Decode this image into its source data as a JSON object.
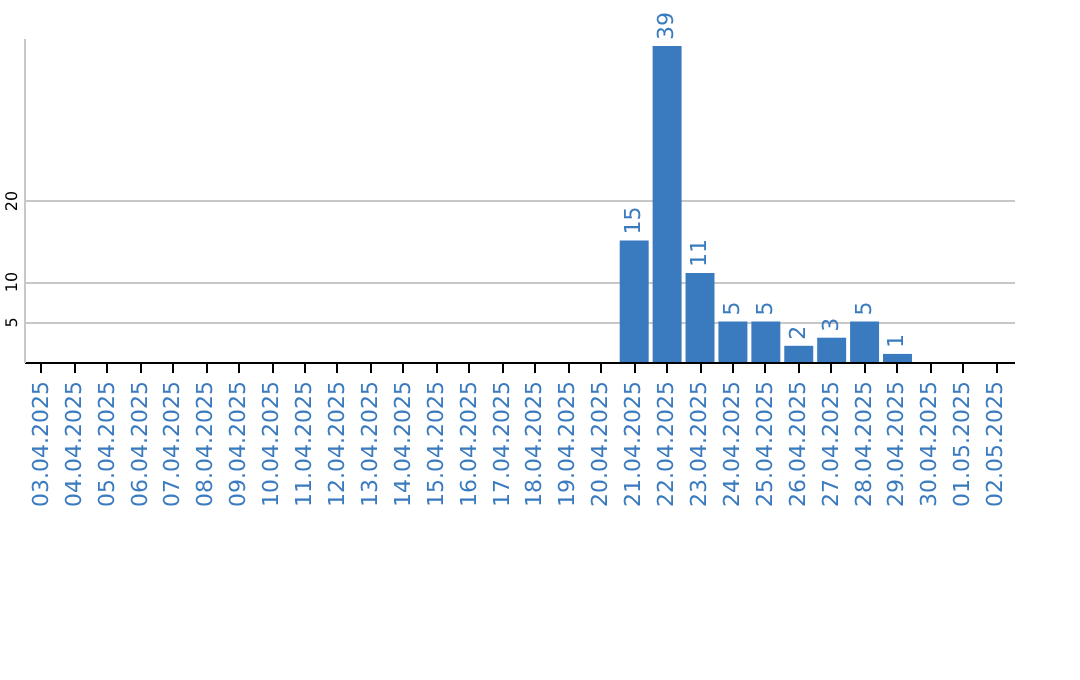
{
  "chart_data": {
    "type": "bar",
    "categories": [
      "03.04.2025",
      "04.04.2025",
      "05.04.2025",
      "06.04.2025",
      "07.04.2025",
      "08.04.2025",
      "09.04.2025",
      "10.04.2025",
      "11.04.2025",
      "12.04.2025",
      "13.04.2025",
      "14.04.2025",
      "15.04.2025",
      "16.04.2025",
      "17.04.2025",
      "18.04.2025",
      "19.04.2025",
      "20.04.2025",
      "21.04.2025",
      "22.04.2025",
      "23.04.2025",
      "24.04.2025",
      "25.04.2025",
      "26.04.2025",
      "27.04.2025",
      "28.04.2025",
      "29.04.2025",
      "30.04.2025",
      "01.05.2025",
      "02.05.2025"
    ],
    "values": [
      0,
      0,
      0,
      0,
      0,
      0,
      0,
      0,
      0,
      0,
      0,
      0,
      0,
      0,
      0,
      0,
      0,
      0,
      15,
      39,
      11,
      5,
      5,
      2,
      3,
      5,
      1,
      0,
      0,
      0
    ],
    "value_labels": [
      null,
      null,
      null,
      null,
      null,
      null,
      null,
      null,
      null,
      null,
      null,
      null,
      null,
      null,
      null,
      null,
      null,
      null,
      "15",
      "39",
      "11",
      "5",
      "5",
      "2",
      "3",
      "5",
      "1",
      null,
      null,
      null
    ],
    "color": "#3a7abf",
    "ylim": [
      0,
      40
    ],
    "yticks": [
      5,
      10,
      20
    ],
    "grid": "y"
  }
}
